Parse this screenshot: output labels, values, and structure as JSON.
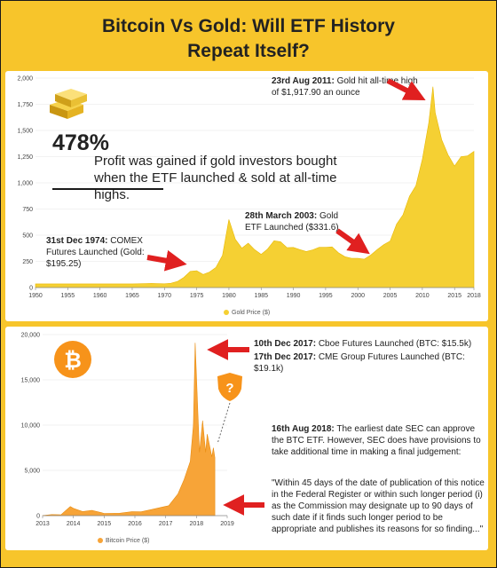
{
  "title_line1": "Bitcoin Vs Gold: Will ETF History",
  "title_line2": "Repeat Itself?",
  "gold_panel": {
    "big_percent": "478%",
    "profit_text": "Profit was gained if gold investors bought when the ETF launched & sold at all-time highs.",
    "ann_ath_date": "23rd Aug 2011:",
    "ann_ath_text": "Gold hit all-time high of $1,917.90 an ounce",
    "ann_etf_date": "28th March 2003:",
    "ann_etf_text": "Gold ETF Launched ($331.6)",
    "ann_comex_date": "31st Dec 1974:",
    "ann_comex_text": "COMEX Futures Launched (Gold: $195.25)",
    "legend_label": "Gold Price ($)"
  },
  "btc_panel": {
    "ann_cboe_date": "10th Dec 2017:",
    "ann_cboe_text": "Cboe Futures Launched (BTC: $15.5k)",
    "ann_cme_date": "17th Dec 2017:",
    "ann_cme_text": "CME Group Futures Launched (BTC: $19.1k)",
    "sec_date": "16th Aug 2018:",
    "sec_text": "The earliest date SEC can approve the BTC ETF. However, SEC does have provisions to take additional time in making a final judgement:",
    "quote": "\"Within 45 days of the date of publication of this notice in the Federal Register or within such longer period (i) as the Commission may designate up to 90 days of such date if it finds such longer period to be appropriate and publishes its reasons for so finding...\"",
    "question_mark": "?",
    "bitcoin_symbol": "₿",
    "legend_label": "Bitcoin Price ($)"
  },
  "colors": {
    "background": "#F7C52B",
    "gold_fill": "#F5D033",
    "btc_fill": "#F7A438",
    "arrow": "#E02020"
  },
  "chart_data": [
    {
      "type": "area",
      "series": [
        {
          "name": "Gold Price ($)",
          "points": [
            [
              1950,
              35
            ],
            [
              1955,
              35
            ],
            [
              1960,
              35
            ],
            [
              1965,
              35
            ],
            [
              1968,
              39
            ],
            [
              1970,
              36
            ],
            [
              1971,
              41
            ],
            [
              1972,
              58
            ],
            [
              1973,
              97
            ],
            [
              1974,
              154
            ],
            [
              1975,
              161
            ],
            [
              1976,
              125
            ],
            [
              1977,
              148
            ],
            [
              1978,
              193
            ],
            [
              1979,
              307
            ],
            [
              1980,
              650
            ],
            [
              1981,
              460
            ],
            [
              1982,
              376
            ],
            [
              1983,
              424
            ],
            [
              1984,
              361
            ],
            [
              1985,
              317
            ],
            [
              1986,
              368
            ],
            [
              1987,
              447
            ],
            [
              1988,
              437
            ],
            [
              1989,
              381
            ],
            [
              1990,
              383
            ],
            [
              1991,
              362
            ],
            [
              1992,
              344
            ],
            [
              1993,
              360
            ],
            [
              1994,
              384
            ],
            [
              1995,
              384
            ],
            [
              1996,
              388
            ],
            [
              1997,
              331
            ],
            [
              1998,
              294
            ],
            [
              1999,
              279
            ],
            [
              2000,
              279
            ],
            [
              2001,
              271
            ],
            [
              2002,
              310
            ],
            [
              2003,
              363
            ],
            [
              2004,
              409
            ],
            [
              2005,
              444
            ],
            [
              2006,
              604
            ],
            [
              2007,
              695
            ],
            [
              2008,
              872
            ],
            [
              2009,
              972
            ],
            [
              2010,
              1225
            ],
            [
              2011,
              1572
            ],
            [
              2011.64,
              1917.9
            ],
            [
              2012,
              1669
            ],
            [
              2013,
              1411
            ],
            [
              2014,
              1266
            ],
            [
              2015,
              1160
            ],
            [
              2016,
              1250
            ],
            [
              2017,
              1257
            ],
            [
              2018,
              1300
            ]
          ]
        }
      ],
      "xlim": [
        1950,
        2018
      ],
      "ylim": [
        0,
        2000
      ],
      "xticks": [
        "1950",
        "1955",
        "1960",
        "1965",
        "1970",
        "1975",
        "1980",
        "1985",
        "1990",
        "1995",
        "2000",
        "2005",
        "2010",
        "2015",
        "2018"
      ],
      "yticks": [
        "0",
        "250",
        "500",
        "750",
        "1,000",
        "1,250",
        "1,500",
        "1,750",
        "2,000"
      ],
      "legend": "bottom-center"
    },
    {
      "type": "area",
      "series": [
        {
          "name": "Bitcoin Price ($)",
          "points": [
            [
              2013,
              13
            ],
            [
              2013.3,
              120
            ],
            [
              2013.6,
              100
            ],
            [
              2013.9,
              1000
            ],
            [
              2014,
              800
            ],
            [
              2014.3,
              450
            ],
            [
              2014.6,
              580
            ],
            [
              2014.9,
              330
            ],
            [
              2015,
              250
            ],
            [
              2015.5,
              260
            ],
            [
              2015.9,
              430
            ],
            [
              2016.2,
              420
            ],
            [
              2016.5,
              650
            ],
            [
              2016.9,
              950
            ],
            [
              2017.1,
              1100
            ],
            [
              2017.4,
              2400
            ],
            [
              2017.6,
              4000
            ],
            [
              2017.8,
              6000
            ],
            [
              2017.9,
              10000
            ],
            [
              2017.96,
              19100
            ],
            [
              2018.05,
              11000
            ],
            [
              2018.1,
              7000
            ],
            [
              2018.2,
              10500
            ],
            [
              2018.3,
              7000
            ],
            [
              2018.35,
              9000
            ],
            [
              2018.5,
              6500
            ],
            [
              2018.55,
              7500
            ],
            [
              2018.6,
              6400
            ]
          ]
        }
      ],
      "xlim": [
        2013,
        2019
      ],
      "ylim": [
        0,
        20000
      ],
      "xticks": [
        "2013",
        "2014",
        "2015",
        "2016",
        "2017",
        "2018",
        "2019"
      ],
      "yticks": [
        "0",
        "5,000",
        "10,000",
        "15,000",
        "20,000"
      ],
      "legend": "bottom-center"
    }
  ]
}
